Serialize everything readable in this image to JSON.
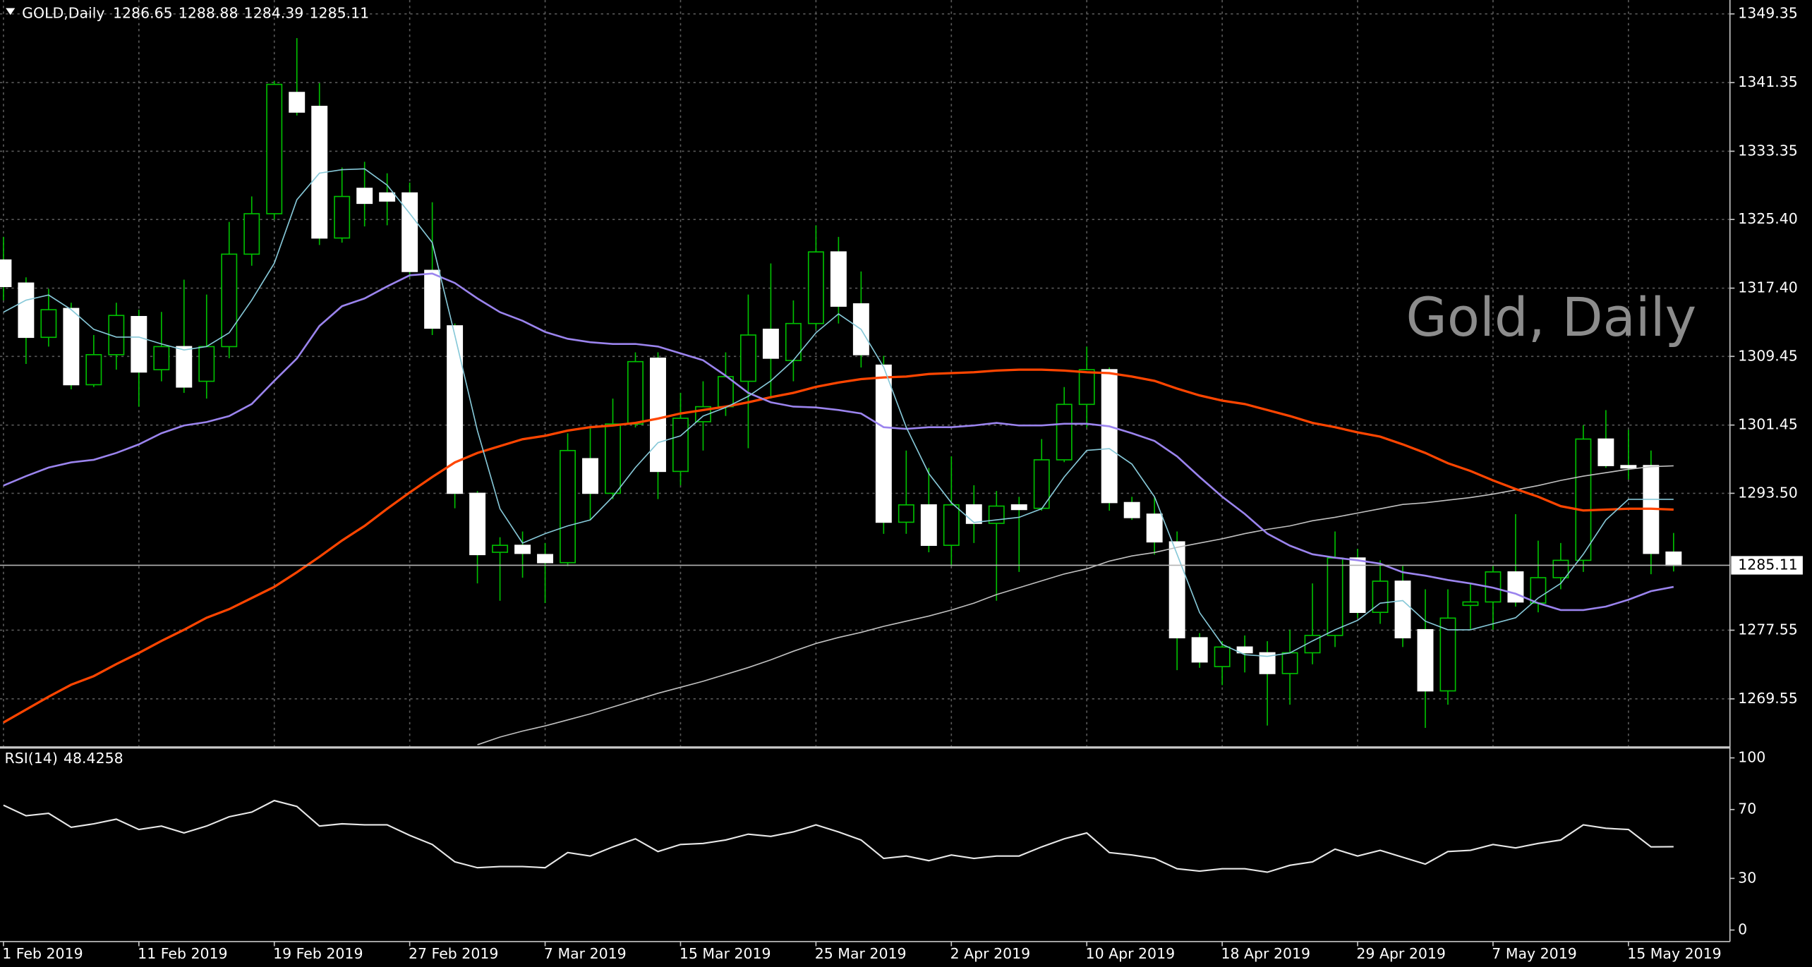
{
  "chart_data": [
    {
      "type": "candlestick",
      "title": "GOLD,Daily",
      "watermark": "Gold, Daily",
      "categories": [
        "1 Feb 2019",
        null,
        null,
        null,
        null,
        null,
        "11 Feb 2019",
        null,
        null,
        null,
        null,
        null,
        "19 Feb 2019",
        null,
        null,
        null,
        null,
        null,
        "27 Feb 2019",
        null,
        null,
        null,
        null,
        null,
        "7 Mar 2019",
        null,
        null,
        null,
        null,
        null,
        "15 Mar 2019",
        null,
        null,
        null,
        null,
        null,
        "25 Mar 2019",
        null,
        null,
        null,
        null,
        null,
        "2 Apr 2019",
        null,
        null,
        null,
        null,
        null,
        "10 Apr 2019",
        null,
        null,
        null,
        null,
        null,
        "18 Apr 2019",
        null,
        null,
        null,
        null,
        null,
        "29 Apr 2019",
        null,
        null,
        null,
        null,
        null,
        "7 May 2019",
        null,
        null,
        null,
        null,
        null,
        "15 May 2019",
        null,
        null
      ],
      "open": [
        1320.68,
        1317.99,
        1311.67,
        1315.03,
        1306.15,
        1309.65,
        1314.09,
        1307.9,
        1310.59,
        1306.55,
        1310.59,
        1321.36,
        1326.07,
        1340.2,
        1338.58,
        1323.24,
        1329.03,
        1328.49,
        1328.49,
        1319.47,
        1313.01,
        1293.5,
        1286.63,
        1287.44,
        1286.36,
        1285.42,
        1297.53,
        1293.5,
        1301.57,
        1309.24,
        1296.05,
        1301.84,
        1303.59,
        1306.55,
        1312.61,
        1308.97,
        1313.28,
        1321.62,
        1315.57,
        1308.43,
        1290.13,
        1292.15,
        1287.44,
        1292.15,
        1290.0,
        1292.15,
        1291.75,
        1297.4,
        1303.86,
        1307.9,
        1292.42,
        1291.07,
        1287.84,
        1276.67,
        1273.31,
        1275.59,
        1274.92,
        1272.5,
        1274.92,
        1276.94,
        1285.96,
        1279.63,
        1283.26,
        1277.61,
        1270.48,
        1280.44,
        1280.84,
        1284.34,
        1280.71,
        1283.67,
        1285.69,
        1299.82,
        1296.73,
        1296.73,
        1286.65
      ],
      "high": [
        1323.37,
        1318.66,
        1317.32,
        1315.7,
        1311.94,
        1315.7,
        1314.89,
        1314.63,
        1318.39,
        1316.65,
        1325.12,
        1328.08,
        1341.55,
        1346.53,
        1341.28,
        1331.45,
        1332.12,
        1330.78,
        1329.7,
        1327.41,
        1313.28,
        1293.77,
        1288.38,
        1289.05,
        1287.71,
        1300.49,
        1301.17,
        1304.53,
        1309.92,
        1309.92,
        1305.2,
        1306.55,
        1309.92,
        1316.65,
        1320.28,
        1315.97,
        1324.72,
        1323.37,
        1319.34,
        1309.51,
        1298.48,
        1296.46,
        1297.8,
        1294.44,
        1293.77,
        1293.09,
        1299.82,
        1305.88,
        1310.59,
        1308.16,
        1293.09,
        1293.09,
        1289.05,
        1277.21,
        1276.27,
        1276.94,
        1276.27,
        1277.61,
        1283.0,
        1289.05,
        1287.03,
        1285.69,
        1285.02,
        1282.32,
        1282.32,
        1283.0,
        1285.02,
        1291.07,
        1287.98,
        1287.71,
        1301.44,
        1303.19,
        1300.9,
        1298.48,
        1288.88
      ],
      "low": [
        1315.97,
        1308.57,
        1310.59,
        1305.61,
        1305.88,
        1307.9,
        1303.59,
        1306.55,
        1305.2,
        1304.53,
        1309.24,
        1320.01,
        1325.39,
        1337.51,
        1322.43,
        1322.7,
        1324.59,
        1324.72,
        1318.66,
        1311.94,
        1291.75,
        1283.0,
        1280.98,
        1283.67,
        1280.71,
        1285.02,
        1290.4,
        1292.82,
        1301.17,
        1292.82,
        1294.44,
        1298.48,
        1302.51,
        1298.75,
        1304.53,
        1306.55,
        1312.61,
        1313.28,
        1308.16,
        1288.78,
        1288.78,
        1286.63,
        1285.02,
        1287.71,
        1280.98,
        1284.34,
        1291.48,
        1297.13,
        1301.17,
        1291.48,
        1290.4,
        1286.36,
        1272.9,
        1273.17,
        1271.15,
        1272.63,
        1266.44,
        1268.87,
        1273.58,
        1275.59,
        1278.96,
        1278.29,
        1275.59,
        1266.17,
        1268.87,
        1277.61,
        1277.61,
        1280.3,
        1279.63,
        1282.32,
        1284.34,
        1296.46,
        1295.11,
        1284.07,
        1284.39
      ],
      "close": [
        1317.59,
        1311.67,
        1314.89,
        1306.15,
        1309.65,
        1314.22,
        1307.63,
        1310.59,
        1305.88,
        1310.59,
        1321.36,
        1326.07,
        1341.14,
        1337.91,
        1323.24,
        1328.08,
        1327.28,
        1327.55,
        1319.34,
        1312.74,
        1293.5,
        1286.36,
        1287.44,
        1286.5,
        1285.42,
        1298.48,
        1293.5,
        1301.57,
        1308.84,
        1296.05,
        1302.24,
        1303.59,
        1307.09,
        1311.94,
        1309.24,
        1313.28,
        1321.62,
        1315.3,
        1309.65,
        1290.13,
        1292.15,
        1287.44,
        1292.15,
        1290.0,
        1292.01,
        1291.61,
        1297.4,
        1303.86,
        1307.9,
        1292.42,
        1290.67,
        1287.84,
        1276.67,
        1273.85,
        1275.59,
        1274.92,
        1272.5,
        1274.92,
        1276.94,
        1285.96,
        1279.63,
        1283.26,
        1276.67,
        1270.48,
        1278.96,
        1280.84,
        1284.34,
        1280.84,
        1283.67,
        1285.69,
        1299.82,
        1296.73,
        1296.46,
        1286.5,
        1285.11
      ],
      "up_fill": "#000000",
      "down_fill": "#ffffff",
      "wick_color": "#00c000",
      "overlays": [
        {
          "color": "#c0c0c0",
          "width": 1,
          "values": [
            null,
            null,
            null,
            null,
            null,
            null,
            null,
            null,
            null,
            null,
            null,
            null,
            null,
            null,
            null,
            null,
            null,
            null,
            null,
            null,
            null,
            1264.2,
            1265.1,
            1265.8,
            1266.4,
            1267.1,
            1267.8,
            1268.6,
            1269.4,
            1270.2,
            1270.9,
            1271.6,
            1272.4,
            1273.2,
            1274.1,
            1275.1,
            1276.0,
            1276.7,
            1277.3,
            1278.0,
            1278.6,
            1279.2,
            1279.9,
            1280.7,
            1281.7,
            1282.5,
            1283.3,
            1284.1,
            1284.7,
            1285.6,
            1286.2,
            1286.6,
            1287.2,
            1287.7,
            1288.2,
            1288.8,
            1289.3,
            1289.7,
            1290.3,
            1290.7,
            1291.2,
            1291.7,
            1292.2,
            1292.4,
            1292.7,
            1293.0,
            1293.4,
            1293.9,
            1294.4,
            1295.0,
            1295.5,
            1295.9,
            1296.3,
            1296.6,
            1296.7
          ]
        },
        {
          "color": "#ff4500",
          "width": 2,
          "values": [
            1266.8,
            1268.3,
            1269.8,
            1271.2,
            1272.2,
            1273.6,
            1274.9,
            1276.3,
            1277.6,
            1279.0,
            1280.0,
            1281.3,
            1282.6,
            1284.3,
            1286.1,
            1288.0,
            1289.7,
            1291.7,
            1293.6,
            1295.4,
            1297.1,
            1298.2,
            1299.0,
            1299.8,
            1300.2,
            1300.8,
            1301.2,
            1301.4,
            1301.7,
            1302.2,
            1302.8,
            1303.2,
            1303.6,
            1304.1,
            1304.7,
            1305.2,
            1305.9,
            1306.4,
            1306.8,
            1307.0,
            1307.1,
            1307.4,
            1307.5,
            1307.6,
            1307.8,
            1307.9,
            1307.9,
            1307.8,
            1307.6,
            1307.5,
            1307.1,
            1306.6,
            1305.7,
            1304.9,
            1304.3,
            1303.9,
            1303.2,
            1302.5,
            1301.7,
            1301.2,
            1300.6,
            1300.1,
            1299.2,
            1298.2,
            1297.0,
            1296.1,
            1295.0,
            1294.0,
            1293.1,
            1292.0,
            1291.5,
            1291.6,
            1291.7,
            1291.7,
            1291.6
          ]
        },
        {
          "color": "#9b84ee",
          "width": 1.6,
          "values": [
            1294.4,
            1295.5,
            1296.5,
            1297.1,
            1297.4,
            1298.2,
            1299.2,
            1300.5,
            1301.4,
            1301.8,
            1302.5,
            1303.9,
            1306.6,
            1309.2,
            1313.0,
            1315.3,
            1316.2,
            1317.6,
            1318.9,
            1319.1,
            1318.0,
            1316.2,
            1314.6,
            1313.6,
            1312.3,
            1311.5,
            1311.1,
            1310.9,
            1310.9,
            1310.6,
            1309.8,
            1309.0,
            1307.2,
            1305.2,
            1304.1,
            1303.6,
            1303.5,
            1303.2,
            1302.8,
            1301.2,
            1301.0,
            1301.2,
            1301.2,
            1301.4,
            1301.7,
            1301.4,
            1301.4,
            1301.6,
            1301.6,
            1301.3,
            1300.5,
            1299.6,
            1297.8,
            1295.4,
            1293.1,
            1291.1,
            1288.8,
            1287.4,
            1286.4,
            1286.0,
            1285.7,
            1285.3,
            1284.3,
            1283.9,
            1283.4,
            1283.0,
            1282.5,
            1281.8,
            1280.7,
            1279.9,
            1279.9,
            1280.3,
            1281.1,
            1282.1,
            1282.6
          ]
        },
        {
          "color": "#86c8d8",
          "width": 1,
          "values": [
            1314.6,
            1316.0,
            1316.6,
            1314.9,
            1312.6,
            1311.7,
            1311.7,
            1310.9,
            1310.2,
            1310.6,
            1312.2,
            1316.0,
            1320.3,
            1327.7,
            1330.8,
            1331.2,
            1331.3,
            1329.4,
            1326.1,
            1322.7,
            1311.9,
            1300.8,
            1291.7,
            1287.7,
            1288.8,
            1289.7,
            1290.4,
            1293.1,
            1296.5,
            1299.4,
            1300.2,
            1302.5,
            1303.5,
            1304.8,
            1306.6,
            1309.0,
            1312.2,
            1314.4,
            1312.6,
            1308.2,
            1301.2,
            1295.8,
            1292.4,
            1290.1,
            1290.4,
            1290.7,
            1291.7,
            1295.4,
            1298.5,
            1298.7,
            1296.9,
            1293.1,
            1286.4,
            1279.6,
            1275.9,
            1274.7,
            1274.5,
            1274.9,
            1276.3,
            1277.6,
            1278.7,
            1280.7,
            1281.0,
            1278.6,
            1277.6,
            1277.6,
            1278.3,
            1279.0,
            1281.3,
            1283.0,
            1286.4,
            1290.4,
            1292.8,
            1292.8,
            1292.8
          ]
        }
      ],
      "ylim": [
        1264.02,
        1350.97
      ],
      "yticks": [
        1269.55,
        1277.55,
        {
          "value": 1293.5,
          "label": "1293.50"
        },
        1301.45,
        1309.45,
        {
          "value": 1317.4,
          "label": "1317.40"
        },
        {
          "value": 1325.4,
          "label": "1325.40"
        },
        1333.35,
        1341.35,
        1349.35
      ],
      "grid": true
    },
    {
      "type": "line",
      "title": "RSI(14)",
      "color": "#e8e8e8",
      "values": [
        72.5,
        66.4,
        67.8,
        59.7,
        61.7,
        64.4,
        58.4,
        60.4,
        56.4,
        60.4,
        65.8,
        68.5,
        75.2,
        71.8,
        60.4,
        61.7,
        61.1,
        61.1,
        55.0,
        49.7,
        39.6,
        36.2,
        36.9,
        36.9,
        36.2,
        45.0,
        43.0,
        48.3,
        53.0,
        45.6,
        49.7,
        50.3,
        52.3,
        55.7,
        54.4,
        57.0,
        61.1,
        57.0,
        52.3,
        41.6,
        43.0,
        40.3,
        43.6,
        41.6,
        43.0,
        43.0,
        48.3,
        53.0,
        56.4,
        45.0,
        43.6,
        41.6,
        35.6,
        34.2,
        35.6,
        35.6,
        33.6,
        37.6,
        39.6,
        47.0,
        43.0,
        46.3,
        42.3,
        38.3,
        45.6,
        46.3,
        49.7,
        47.7,
        50.3,
        52.3,
        61.1,
        59.1,
        58.4,
        48.3,
        48.4258
      ],
      "ylim": [
        -6.71,
        105.37
      ],
      "yticks": [
        0,
        30,
        70,
        100
      ]
    }
  ]
}
